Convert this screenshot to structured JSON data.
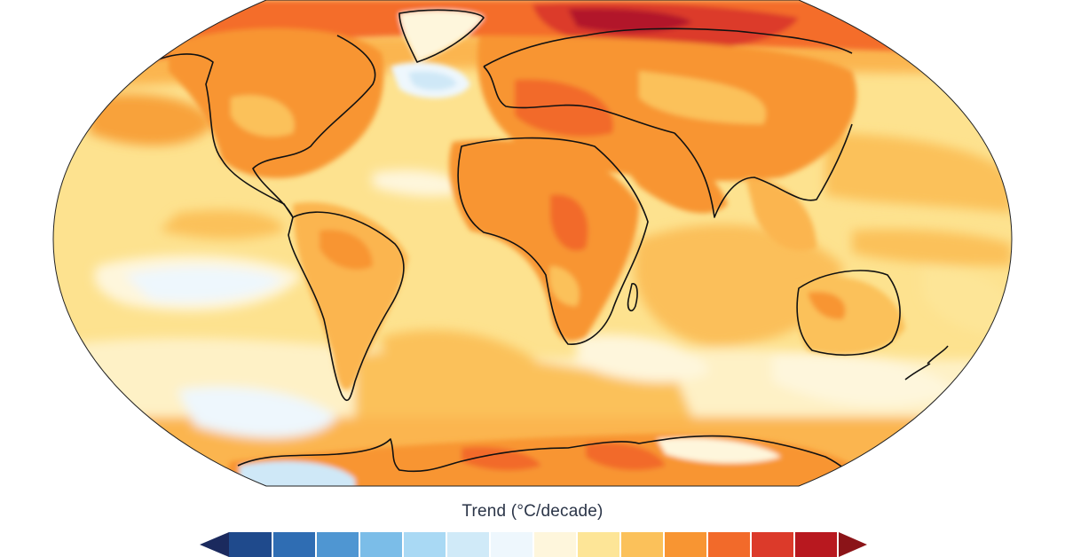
{
  "map": {
    "projection": "Robinson (global)",
    "variable": "Surface temperature trend",
    "ocean_base": "#fde28f",
    "outline_color": "#1a1a1a",
    "regions": [
      {
        "name": "arctic-siberia-hotspot",
        "color": "#b2182b"
      },
      {
        "name": "northern-eurasia",
        "color": "#e34a33"
      },
      {
        "name": "arctic-ocean",
        "color": "#f46d2a"
      },
      {
        "name": "north-america",
        "color": "#f8922c"
      },
      {
        "name": "africa",
        "color": "#f8922c"
      },
      {
        "name": "north-pacific",
        "color": "#fbb550"
      },
      {
        "name": "indian-ocean",
        "color": "#fbbf5a"
      },
      {
        "name": "tropical-pacific",
        "color": "#fde28f"
      },
      {
        "name": "eastern-south-pacific-cool",
        "color": "#eef7fd"
      },
      {
        "name": "eastern-south-pacific-core",
        "color": "#cfe8f7"
      },
      {
        "name": "north-atlantic-warming-hole",
        "color": "#cfe8f7"
      },
      {
        "name": "southern-ocean",
        "color": "#fef3d4"
      },
      {
        "name": "antarctica",
        "color": "#f8922c"
      }
    ]
  },
  "colorbar": {
    "title": "Trend (°C/decade)",
    "extend": "both",
    "under_color": "#1b2a5e",
    "over_color": "#8b1418",
    "colors": [
      "#1f4a8c",
      "#2f6db3",
      "#4f96d2",
      "#7bbde8",
      "#a9d9f4",
      "#d0eaf8",
      "#eef7fd",
      "#fef6dc",
      "#fde597",
      "#fbc15a",
      "#f89532",
      "#f26a2a",
      "#dc3a2a",
      "#b8181f"
    ]
  }
}
